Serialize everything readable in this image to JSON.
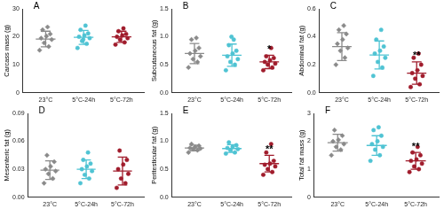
{
  "chart_data": [
    {
      "type": "scatter",
      "title": "A",
      "y_label": "Carcass mass (g)",
      "categories": [
        "23°C",
        "5°C-24h",
        "5°C-72h"
      ],
      "ylim": [
        0,
        30
      ],
      "yticks": [
        0,
        10,
        20,
        30
      ],
      "grid": false,
      "groups": [
        {
          "color": "#8a8a8a",
          "marker": "diamond",
          "values": [
            15.2,
            16.5,
            17.8,
            19,
            19.5,
            20.2,
            21,
            22.5,
            23.5
          ],
          "mean": 19.2,
          "sd": 2.8
        },
        {
          "color": "#4fc3d3",
          "marker": "circle",
          "values": [
            16,
            17.5,
            18.5,
            19.5,
            20,
            20.5,
            21.2,
            22.5,
            24,
            19
          ],
          "mean": 19.8,
          "sd": 2.5
        },
        {
          "color": "#a01c2c",
          "marker": "circle",
          "values": [
            17.2,
            18,
            19,
            19.5,
            20,
            20.5,
            21,
            22,
            23
          ],
          "mean": 20,
          "sd": 2
        }
      ]
    },
    {
      "type": "scatter",
      "title": "B",
      "y_label": "Subcutaneous fat (g)",
      "categories": [
        "23°C",
        "5°C-24h",
        "5°C-72h"
      ],
      "ylim": [
        0,
        1.5
      ],
      "yticks": [
        {
          "value": 0,
          "label": "0.0"
        },
        0.5,
        {
          "value": 1,
          "label": "1.0"
        },
        1.5
      ],
      "grid": false,
      "groups": [
        {
          "color": "#8a8a8a",
          "marker": "diamond",
          "values": [
            0.45,
            0.55,
            0.6,
            0.65,
            0.7,
            0.75,
            0.8,
            0.95,
            0.98
          ],
          "mean": 0.7,
          "sd": 0.18
        },
        {
          "color": "#4fc3d3",
          "marker": "circle",
          "values": [
            0.4,
            0.5,
            0.55,
            0.6,
            0.65,
            0.7,
            0.75,
            0.85,
            0.95,
            1.0
          ],
          "mean": 0.67,
          "sd": 0.2
        },
        {
          "color": "#a01c2c",
          "marker": "circle",
          "values": [
            0.4,
            0.45,
            0.5,
            0.52,
            0.55,
            0.58,
            0.62,
            0.65,
            0.8
          ],
          "mean": 0.55,
          "sd": 0.12,
          "significance": "*"
        }
      ]
    },
    {
      "type": "scatter",
      "title": "C",
      "y_label": "Abdominal fat (g)",
      "categories": [
        "23°C",
        "5°C-24h",
        "5°C-72h"
      ],
      "ylim": [
        0,
        0.6
      ],
      "yticks": [
        {
          "value": 0,
          "label": "0.0"
        },
        0.2,
        0.4,
        0.6
      ],
      "grid": false,
      "groups": [
        {
          "color": "#8a8a8a",
          "marker": "diamond",
          "values": [
            0.2,
            0.25,
            0.3,
            0.32,
            0.35,
            0.38,
            0.42,
            0.45,
            0.48
          ],
          "mean": 0.33,
          "sd": 0.1
        },
        {
          "color": "#4fc3d3",
          "marker": "circle",
          "values": [
            0.12,
            0.18,
            0.22,
            0.25,
            0.28,
            0.3,
            0.33,
            0.38,
            0.45
          ],
          "mean": 0.27,
          "sd": 0.1
        },
        {
          "color": "#a01c2c",
          "marker": "circle",
          "values": [
            0.04,
            0.06,
            0.1,
            0.12,
            0.14,
            0.16,
            0.2,
            0.25,
            0.28
          ],
          "mean": 0.14,
          "sd": 0.08,
          "significance": "**"
        }
      ]
    },
    {
      "type": "scatter",
      "title": "D",
      "y_label": "Mesenteric fat (g)",
      "categories": [
        "23°C",
        "5°C-24h",
        "5°C-72h"
      ],
      "ylim": [
        0,
        0.09
      ],
      "yticks": [
        {
          "value": 0,
          "label": "0.00"
        },
        0.03,
        0.06,
        0.09
      ],
      "grid": false,
      "groups": [
        {
          "color": "#8a8a8a",
          "marker": "diamond",
          "values": [
            0.015,
            0.02,
            0.025,
            0.028,
            0.03,
            0.033,
            0.038,
            0.045
          ],
          "mean": 0.029,
          "sd": 0.01
        },
        {
          "color": "#4fc3d3",
          "marker": "circle",
          "values": [
            0.015,
            0.02,
            0.024,
            0.028,
            0.03,
            0.033,
            0.036,
            0.04,
            0.048
          ],
          "mean": 0.03,
          "sd": 0.01
        },
        {
          "color": "#a01c2c",
          "marker": "circle",
          "values": [
            0.01,
            0.015,
            0.02,
            0.025,
            0.03,
            0.035,
            0.04,
            0.05
          ],
          "mean": 0.028,
          "sd": 0.015
        }
      ]
    },
    {
      "type": "scatter",
      "title": "E",
      "y_label": "Peritesticular fat (g)",
      "categories": [
        "23°C",
        "5°C-24h",
        "5°C-72h"
      ],
      "ylim": [
        0,
        1.5
      ],
      "yticks": [
        {
          "value": 0,
          "label": "0.0"
        },
        0.5,
        {
          "value": 1,
          "label": "1.0"
        },
        1.5
      ],
      "grid": false,
      "groups": [
        {
          "color": "#8a8a8a",
          "marker": "diamond",
          "values": [
            0.8,
            0.84,
            0.86,
            0.87,
            0.88,
            0.9,
            0.92,
            0.95
          ],
          "mean": 0.88,
          "sd": 0.05
        },
        {
          "color": "#4fc3d3",
          "marker": "circle",
          "values": [
            0.78,
            0.8,
            0.84,
            0.86,
            0.88,
            0.9,
            0.93,
            0.98
          ],
          "mean": 0.87,
          "sd": 0.07
        },
        {
          "color": "#a01c2c",
          "marker": "circle",
          "values": [
            0.4,
            0.45,
            0.5,
            0.55,
            0.58,
            0.6,
            0.65,
            0.8,
            0.95
          ],
          "mean": 0.6,
          "sd": 0.15,
          "significance": "**"
        }
      ]
    },
    {
      "type": "scatter",
      "title": "F",
      "y_label": "Total fat mass (g)",
      "categories": [
        "23°C",
        "5°C-24h",
        "5°C-72h"
      ],
      "ylim": [
        0,
        3
      ],
      "yticks": [
        0,
        1,
        2,
        3
      ],
      "grid": false,
      "groups": [
        {
          "color": "#8a8a8a",
          "marker": "diamond",
          "values": [
            1.5,
            1.7,
            1.8,
            1.9,
            2.0,
            2.05,
            2.2,
            2.4
          ],
          "mean": 1.95,
          "sd": 0.3
        },
        {
          "color": "#4fc3d3",
          "marker": "circle",
          "values": [
            1.3,
            1.5,
            1.7,
            1.8,
            1.9,
            2.0,
            2.2,
            2.4,
            2.5
          ],
          "mean": 1.85,
          "sd": 0.35
        },
        {
          "color": "#a01c2c",
          "marker": "circle",
          "values": [
            0.9,
            1.0,
            1.1,
            1.2,
            1.3,
            1.35,
            1.5,
            1.6,
            1.8
          ],
          "mean": 1.3,
          "sd": 0.3,
          "significance": "**"
        }
      ]
    }
  ]
}
